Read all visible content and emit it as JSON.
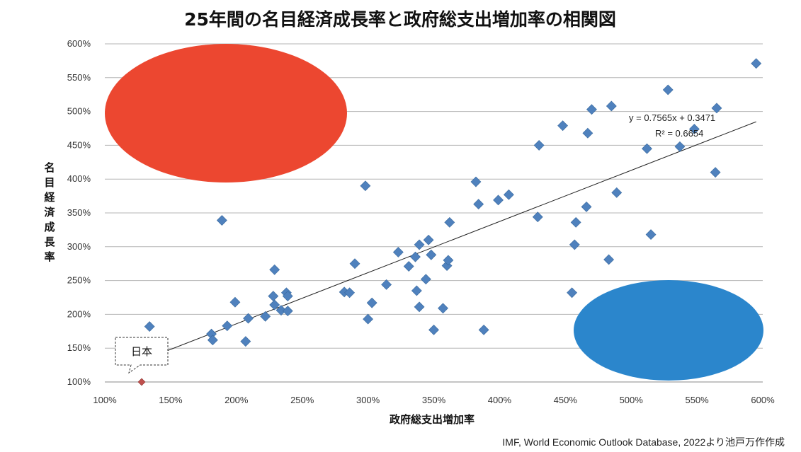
{
  "chart_data": {
    "type": "scatter",
    "title": "25年間の名目経済成長率と政府総支出増加率の相関図",
    "xlabel": "政府総支出増加率",
    "ylabel": "名目経済成長率",
    "xlim": [
      1.0,
      6.0
    ],
    "ylim": [
      1.0,
      6.0
    ],
    "x_ticks": [
      "100%",
      "150%",
      "200%",
      "250%",
      "300%",
      "350%",
      "400%",
      "450%",
      "500%",
      "550%",
      "600%"
    ],
    "y_ticks": [
      "100%",
      "150%",
      "200%",
      "250%",
      "300%",
      "350%",
      "400%",
      "450%",
      "500%",
      "550%",
      "600%"
    ],
    "grid": "horizontal",
    "marker_color": "#4f81bd",
    "highlight_color": "#c0504d",
    "points": [
      [
        1.34,
        1.82
      ],
      [
        1.81,
        1.71
      ],
      [
        1.82,
        1.62
      ],
      [
        1.89,
        3.39
      ],
      [
        1.93,
        1.83
      ],
      [
        1.99,
        2.18
      ],
      [
        2.07,
        1.6
      ],
      [
        2.09,
        1.94
      ],
      [
        2.22,
        1.97
      ],
      [
        2.28,
        2.27
      ],
      [
        2.29,
        2.14
      ],
      [
        2.29,
        2.66
      ],
      [
        2.34,
        2.06
      ],
      [
        2.38,
        2.32
      ],
      [
        2.39,
        2.27
      ],
      [
        2.39,
        2.05
      ],
      [
        2.82,
        2.33
      ],
      [
        2.86,
        2.32
      ],
      [
        2.9,
        2.75
      ],
      [
        2.98,
        3.9
      ],
      [
        3.0,
        1.93
      ],
      [
        3.03,
        2.17
      ],
      [
        3.14,
        2.44
      ],
      [
        3.23,
        2.92
      ],
      [
        3.31,
        2.71
      ],
      [
        3.36,
        2.85
      ],
      [
        3.37,
        2.35
      ],
      [
        3.39,
        3.03
      ],
      [
        3.39,
        2.11
      ],
      [
        3.44,
        2.52
      ],
      [
        3.46,
        3.1
      ],
      [
        3.48,
        2.88
      ],
      [
        3.5,
        1.77
      ],
      [
        3.57,
        2.09
      ],
      [
        3.6,
        2.72
      ],
      [
        3.61,
        2.8
      ],
      [
        3.62,
        3.36
      ],
      [
        3.82,
        3.96
      ],
      [
        3.84,
        3.63
      ],
      [
        3.88,
        1.77
      ],
      [
        3.99,
        3.69
      ],
      [
        4.07,
        3.77
      ],
      [
        4.29,
        3.44
      ],
      [
        4.3,
        4.5
      ],
      [
        4.48,
        4.79
      ],
      [
        4.55,
        2.32
      ],
      [
        4.57,
        3.03
      ],
      [
        4.58,
        3.36
      ],
      [
        4.66,
        3.59
      ],
      [
        4.67,
        4.68
      ],
      [
        4.7,
        5.03
      ],
      [
        4.83,
        2.81
      ],
      [
        4.85,
        5.08
      ],
      [
        4.89,
        3.8
      ],
      [
        5.12,
        4.45
      ],
      [
        5.15,
        3.18
      ],
      [
        5.28,
        5.32
      ],
      [
        5.37,
        4.48
      ],
      [
        5.48,
        4.74
      ],
      [
        5.64,
        4.1
      ],
      [
        5.65,
        5.05
      ],
      [
        5.95,
        5.71
      ]
    ],
    "highlight_point": {
      "label": "日本",
      "x": 1.28,
      "y": 1.0
    },
    "trendline": {
      "slope": 0.7565,
      "intercept": 0.3471,
      "x_range": [
        1.28,
        5.95
      ],
      "equation": "y = 0.7565x + 0.3471",
      "r2": "R² = 0.6654"
    },
    "overlays": [
      {
        "shape": "ellipse",
        "color": "#ec4730"
      },
      {
        "shape": "ellipse",
        "color": "#2b86cc"
      }
    ]
  },
  "source": "IMF, World Economic Outlook Database, 2022より池戸万作作成"
}
